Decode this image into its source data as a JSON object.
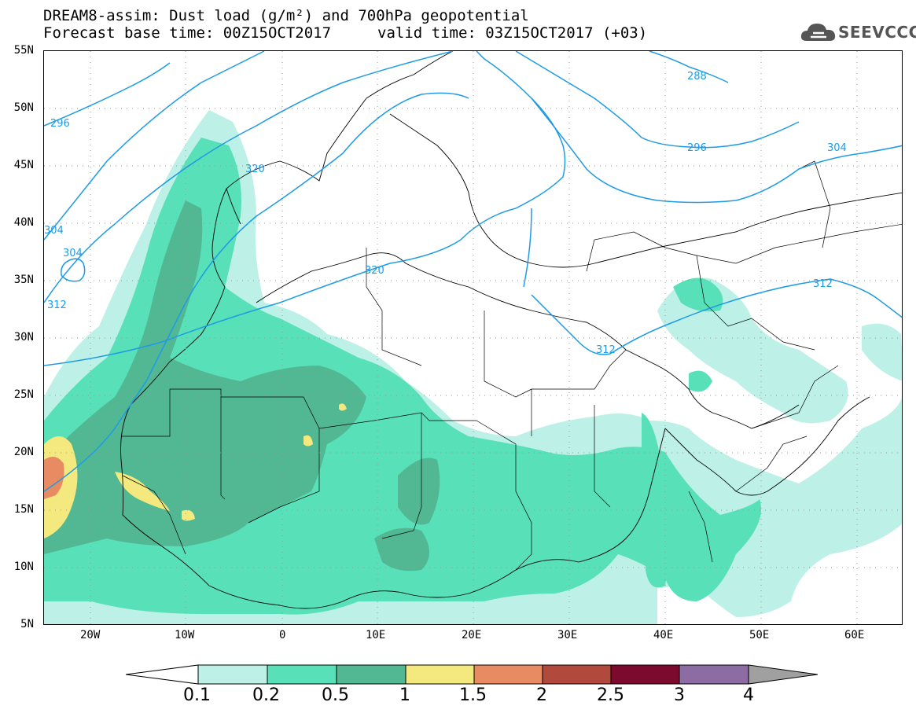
{
  "title": {
    "line1": "DREAM8-assim: Dust load (g/m²) and 700hPa geopotential",
    "line2_base": "Forecast base time: 00Z15OCT2017",
    "line2_valid": "valid time: 03Z15OCT2017 (+03)"
  },
  "logo": {
    "text": "SEEVCCC",
    "icon": "cloud-icon"
  },
  "axes": {
    "lat_labels": [
      "55N",
      "50N",
      "45N",
      "40N",
      "35N",
      "30N",
      "25N",
      "20N",
      "15N",
      "10N",
      "5N"
    ],
    "lon_labels": [
      "20W",
      "10W",
      "0",
      "10E",
      "20E",
      "30E",
      "40E",
      "50E",
      "60E"
    ]
  },
  "contours": {
    "labels": [
      "296",
      "320",
      "304",
      "304",
      "312",
      "320",
      "312",
      "288",
      "296",
      "304",
      "312"
    ],
    "color": "#1e9be6"
  },
  "colorbar": {
    "labels": [
      "0.1",
      "0.2",
      "0.5",
      "1",
      "1.5",
      "2",
      "2.5",
      "3",
      "4"
    ],
    "colors": [
      "#ffffff",
      "#bdf0e6",
      "#58e0b8",
      "#52b894",
      "#f3e97e",
      "#e88a62",
      "#b14a3c",
      "#7b0a2e",
      "#8d6ba3",
      "#a0a0a0"
    ]
  }
}
